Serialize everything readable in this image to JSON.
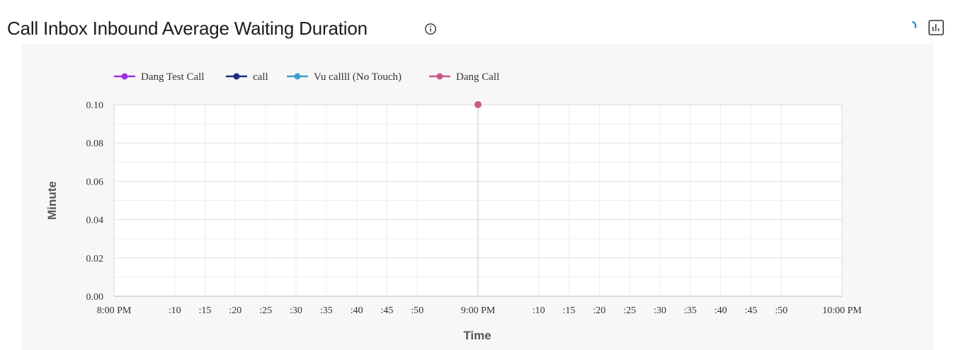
{
  "header": {
    "title": "Call Inbox Inbound Average Waiting Duration",
    "info_icon": "info-circle-icon",
    "spinner_icon": "loading-spinner-icon",
    "chart_toggle_icon": "bar-chart-icon"
  },
  "colors": {
    "accent": "#1a8fd6",
    "grid": "#e2e2e4",
    "axis": "#cfcfd2",
    "panel_bg": "#f7f7f8"
  },
  "chart_data": {
    "type": "line",
    "xlabel": "Time",
    "ylabel": "Minute",
    "ylim": [
      0,
      0.1
    ],
    "y_ticks": [
      "0.00",
      "0.02",
      "0.04",
      "0.06",
      "0.08",
      "0.10"
    ],
    "x_range": [
      "8:00 PM",
      "10:00 PM"
    ],
    "x_ticks": [
      {
        "minute": 0,
        "label": "8:00 PM"
      },
      {
        "minute": 10,
        "label": ":10"
      },
      {
        "minute": 15,
        "label": ":15"
      },
      {
        "minute": 20,
        "label": ":20"
      },
      {
        "minute": 25,
        "label": ":25"
      },
      {
        "minute": 30,
        "label": ":30"
      },
      {
        "minute": 35,
        "label": ":35"
      },
      {
        "minute": 40,
        "label": ":40"
      },
      {
        "minute": 45,
        "label": ":45"
      },
      {
        "minute": 50,
        "label": ":50"
      },
      {
        "minute": 60,
        "label": "9:00 PM"
      },
      {
        "minute": 70,
        "label": ":10"
      },
      {
        "minute": 75,
        "label": ":15"
      },
      {
        "minute": 80,
        "label": ":20"
      },
      {
        "minute": 85,
        "label": ":25"
      },
      {
        "minute": 90,
        "label": ":30"
      },
      {
        "minute": 95,
        "label": ":35"
      },
      {
        "minute": 100,
        "label": ":40"
      },
      {
        "minute": 105,
        "label": ":45"
      },
      {
        "minute": 110,
        "label": ":50"
      },
      {
        "minute": 120,
        "label": "10:00 PM"
      }
    ],
    "grid": true,
    "legend_position": "top-left",
    "series": [
      {
        "name": "Dang Test Call",
        "color": "#9b30e0",
        "points": []
      },
      {
        "name": "call",
        "color": "#1d2b7a",
        "points": []
      },
      {
        "name": "Vu callll (No Touch)",
        "color": "#3a9fd0",
        "points": []
      },
      {
        "name": "Dang Call",
        "color": "#c85a88",
        "points": [
          {
            "x": "9:00 PM",
            "minute": 60,
            "y": 0.1
          }
        ]
      }
    ]
  }
}
